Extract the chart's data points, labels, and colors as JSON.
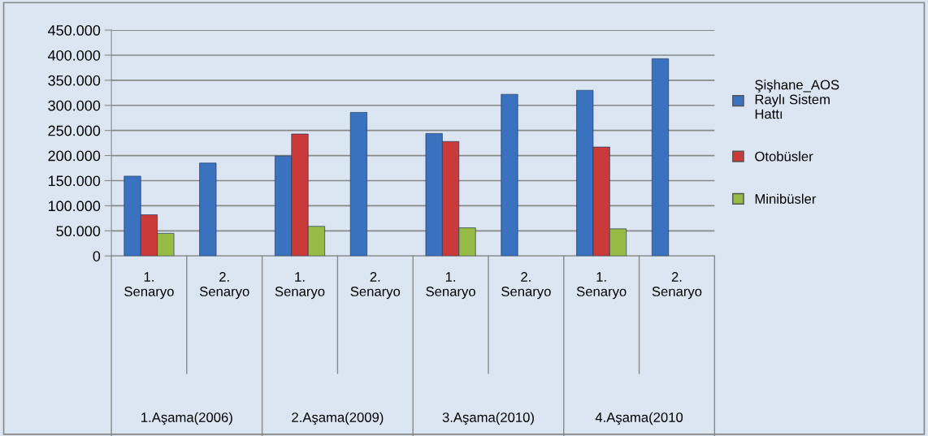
{
  "chart_data": {
    "type": "bar",
    "categories": [
      "1.\nSenaryo",
      "2.\nSenaryo",
      "1.\nSenaryo",
      "2.\nSenaryo",
      "1.\nSenaryo",
      "2.\nSenaryo",
      "1.\nSenaryo",
      "2.\nSenaryo"
    ],
    "series": [
      {
        "name": "Şişhane_AOS\nRaylı Sistem\nHattı",
        "color": "#3a72c0",
        "values": [
          159000,
          185000,
          199000,
          286000,
          244000,
          322000,
          330000,
          393000
        ]
      },
      {
        "name": "Otobüsler",
        "color": "#c93a38",
        "values": [
          82000,
          null,
          243000,
          null,
          228000,
          null,
          217000,
          null
        ]
      },
      {
        "name": "Minibüsler",
        "color": "#98bb45",
        "values": [
          45000,
          null,
          59000,
          null,
          56000,
          null,
          54000,
          null
        ]
      }
    ],
    "annotations": [
      "1.Aşama(2006)",
      "2.Aşama(2009)",
      "3.Aşama(2010)",
      "4.Aşama(2010"
    ],
    "ylim": [
      0,
      450000
    ],
    "yticks": [
      0,
      {
        "value": 50000,
        "label": "50.000"
      },
      {
        "value": 100000,
        "label": "100.000"
      },
      {
        "value": 150000,
        "label": "150.000"
      },
      {
        "value": 200000,
        "label": "200.000"
      },
      {
        "value": 250000,
        "label": "250.000"
      },
      {
        "value": 300000,
        "label": "300.000"
      },
      {
        "value": 350000,
        "label": "350.000"
      },
      {
        "value": 400000,
        "label": "400.000"
      },
      {
        "value": 450000,
        "label": "450.000"
      }
    ],
    "grid": "y",
    "legend": "right"
  }
}
